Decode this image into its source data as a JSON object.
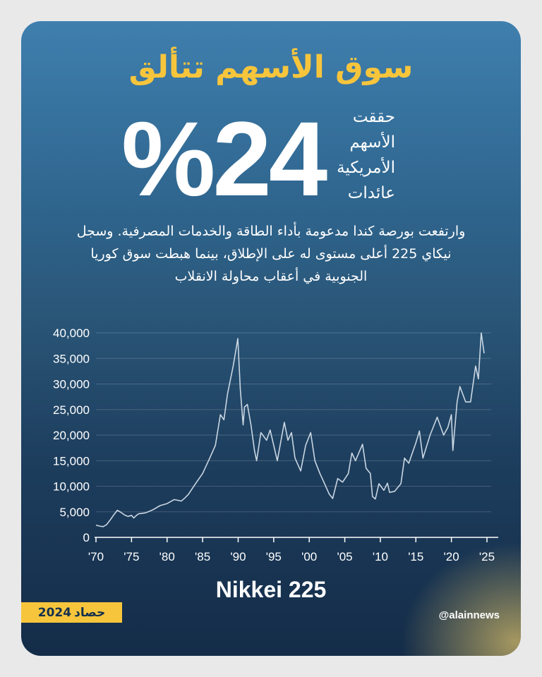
{
  "headline": "سوق الأسهم تتألق",
  "big_number": "%24",
  "subtitle_lines": [
    "حققت",
    "الأسهم",
    "الأمريكية",
    "عائدات"
  ],
  "intro_lines": [
    "وارتفعت بورصة كندا مدعومة بأداء الطاقة والخدمات المصرفية. وسجل",
    "نيكاي 225 أعلى مستوى له على الإطلاق، بينما هبطت سوق كوريا",
    "الجنوبية في أعقاب محاولة الانقلاب"
  ],
  "footer_title": "Nikkei 225",
  "badge": {
    "text": "حصاد",
    "year": "2024"
  },
  "handle": "@alainnews",
  "colors": {
    "accent": "#f7c53c",
    "line": "#c9d6e2",
    "axis": "#ffffff"
  },
  "chart_data": {
    "type": "line",
    "title": "Nikkei 225",
    "xlabel": "",
    "ylabel": "",
    "xlim": [
      1970,
      2025
    ],
    "ylim": [
      0,
      40000
    ],
    "x_tick_labels": [
      "'70",
      "'75",
      "'80",
      "'85",
      "'90",
      "'95",
      "'00",
      "'05",
      "'10",
      "'15",
      "'20",
      "'25"
    ],
    "x_tick_values": [
      1970,
      1975,
      1980,
      1985,
      1990,
      1995,
      2000,
      2005,
      2010,
      2015,
      2020,
      2025
    ],
    "y_tick_labels": [
      "0",
      "5,000",
      "10,000",
      "15,000",
      "20,000",
      "25,000",
      "30,000",
      "35,000",
      "40,000"
    ],
    "y_tick_values": [
      0,
      5000,
      10000,
      15000,
      20000,
      25000,
      30000,
      35000,
      40000
    ],
    "series": [
      {
        "values": [
          [
            1970,
            2400
          ],
          [
            1970.5,
            2200
          ],
          [
            1971,
            2100
          ],
          [
            1971.5,
            2500
          ],
          [
            1972,
            3400
          ],
          [
            1972.5,
            4400
          ],
          [
            1973,
            5300
          ],
          [
            1973.5,
            4900
          ],
          [
            1974,
            4400
          ],
          [
            1974.5,
            4100
          ],
          [
            1975,
            4300
          ],
          [
            1975.3,
            3800
          ],
          [
            1975.7,
            4300
          ],
          [
            1976,
            4600
          ],
          [
            1977,
            4800
          ],
          [
            1978,
            5400
          ],
          [
            1979,
            6200
          ],
          [
            1980,
            6600
          ],
          [
            1981,
            7400
          ],
          [
            1982,
            7100
          ],
          [
            1982.5,
            7700
          ],
          [
            1983,
            8400
          ],
          [
            1984,
            10500
          ],
          [
            1985,
            12500
          ],
          [
            1986,
            15500
          ],
          [
            1986.8,
            18000
          ],
          [
            1987.5,
            24000
          ],
          [
            1988,
            23000
          ],
          [
            1988.5,
            28000
          ],
          [
            1989.3,
            33500
          ],
          [
            1989.95,
            38900
          ],
          [
            1990.3,
            29000
          ],
          [
            1990.7,
            22000
          ],
          [
            1990.9,
            25500
          ],
          [
            1991.3,
            26000
          ],
          [
            1991.8,
            22000
          ],
          [
            1992.3,
            17000
          ],
          [
            1992.6,
            15000
          ],
          [
            1993.2,
            20500
          ],
          [
            1994,
            19000
          ],
          [
            1994.5,
            21000
          ],
          [
            1995.5,
            15000
          ],
          [
            1996.5,
            22500
          ],
          [
            1997,
            19000
          ],
          [
            1997.5,
            20500
          ],
          [
            1998,
            15500
          ],
          [
            1998.8,
            13000
          ],
          [
            1999.5,
            18000
          ],
          [
            2000.2,
            20500
          ],
          [
            2000.8,
            15000
          ],
          [
            2001.5,
            12500
          ],
          [
            2002,
            11000
          ],
          [
            2002.8,
            8500
          ],
          [
            2003.3,
            7600
          ],
          [
            2004,
            11500
          ],
          [
            2004.7,
            10800
          ],
          [
            2005.5,
            12500
          ],
          [
            2006,
            16500
          ],
          [
            2006.5,
            15000
          ],
          [
            2007.5,
            18200
          ],
          [
            2008,
            13500
          ],
          [
            2008.6,
            12500
          ],
          [
            2008.9,
            8000
          ],
          [
            2009.3,
            7500
          ],
          [
            2009.8,
            10500
          ],
          [
            2010.5,
            9200
          ],
          [
            2011,
            10600
          ],
          [
            2011.3,
            8800
          ],
          [
            2012,
            9000
          ],
          [
            2012.9,
            10500
          ],
          [
            2013.4,
            15500
          ],
          [
            2014,
            14500
          ],
          [
            2015,
            18500
          ],
          [
            2015.5,
            20800
          ],
          [
            2016,
            15500
          ],
          [
            2017,
            20000
          ],
          [
            2018,
            23500
          ],
          [
            2018.9,
            20000
          ],
          [
            2019.5,
            21500
          ],
          [
            2020,
            24000
          ],
          [
            2020.2,
            17000
          ],
          [
            2020.8,
            26500
          ],
          [
            2021.2,
            29500
          ],
          [
            2022,
            26500
          ],
          [
            2022.7,
            26500
          ],
          [
            2023.4,
            33500
          ],
          [
            2023.8,
            31000
          ],
          [
            2024.2,
            40000
          ],
          [
            2024.6,
            36000
          ]
        ]
      }
    ]
  }
}
